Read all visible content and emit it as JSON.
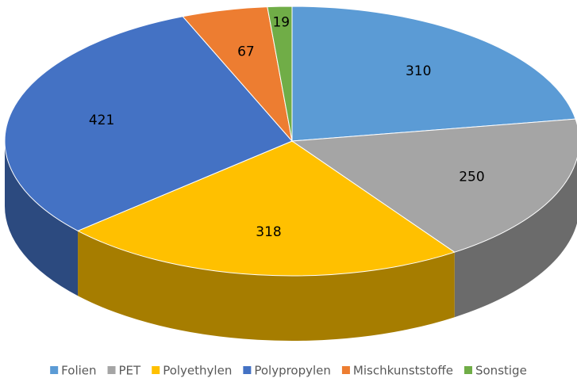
{
  "chart_data": {
    "type": "pie",
    "categories": [
      "Folien",
      "PET",
      "Polyethylen",
      "Polypropylen",
      "Mischkunststoffe",
      "Sonstige"
    ],
    "values": [
      310,
      250,
      318,
      421,
      67,
      19
    ],
    "colors": [
      "#5b9bd5",
      "#a5a5a5",
      "#ffc000",
      "#4472c4",
      "#ed7d31",
      "#70ad47"
    ],
    "legend": "bottom"
  }
}
